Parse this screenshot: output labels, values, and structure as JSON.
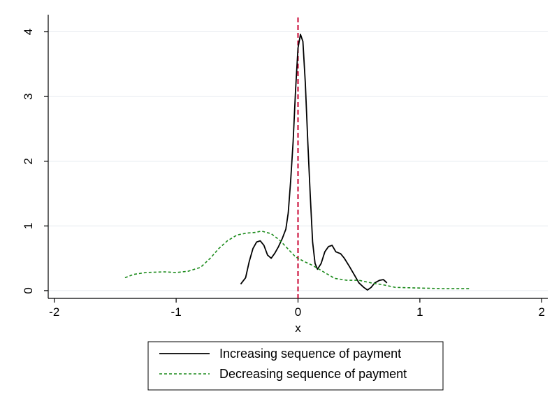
{
  "chart_data": {
    "type": "line",
    "title": "",
    "xlabel": "x",
    "ylabel": "",
    "xlim": [
      -2.05,
      2.05
    ],
    "ylim": [
      -0.12,
      4.2
    ],
    "xticks": [
      -2,
      -1,
      0,
      1,
      2
    ],
    "xtick_labels": [
      "-2",
      "-1",
      "0",
      "1",
      "2"
    ],
    "yticks": [
      0,
      1,
      2,
      3,
      4
    ],
    "ytick_labels": [
      "0",
      "1",
      "2",
      "3",
      "4"
    ],
    "grid": "horizontal",
    "reference_line": {
      "x": 0,
      "color": "#c8002f",
      "style": "dashed"
    },
    "legend": {
      "placement": "bottom"
    },
    "series": [
      {
        "name": "Increasing sequence of payment",
        "color": "#000000",
        "style": "solid",
        "points": [
          [
            -0.47,
            0.1
          ],
          [
            -0.43,
            0.2
          ],
          [
            -0.4,
            0.45
          ],
          [
            -0.37,
            0.65
          ],
          [
            -0.34,
            0.75
          ],
          [
            -0.31,
            0.77
          ],
          [
            -0.28,
            0.7
          ],
          [
            -0.25,
            0.55
          ],
          [
            -0.22,
            0.5
          ],
          [
            -0.19,
            0.58
          ],
          [
            -0.16,
            0.68
          ],
          [
            -0.13,
            0.8
          ],
          [
            -0.1,
            0.95
          ],
          [
            -0.08,
            1.2
          ],
          [
            -0.06,
            1.7
          ],
          [
            -0.04,
            2.3
          ],
          [
            -0.02,
            3.1
          ],
          [
            0.0,
            3.75
          ],
          [
            0.02,
            3.96
          ],
          [
            0.04,
            3.85
          ],
          [
            0.06,
            3.2
          ],
          [
            0.08,
            2.3
          ],
          [
            0.1,
            1.5
          ],
          [
            0.12,
            0.75
          ],
          [
            0.14,
            0.42
          ],
          [
            0.16,
            0.33
          ],
          [
            0.19,
            0.42
          ],
          [
            0.22,
            0.6
          ],
          [
            0.25,
            0.68
          ],
          [
            0.28,
            0.7
          ],
          [
            0.31,
            0.6
          ],
          [
            0.35,
            0.57
          ],
          [
            0.38,
            0.5
          ],
          [
            0.42,
            0.38
          ],
          [
            0.46,
            0.25
          ],
          [
            0.5,
            0.12
          ],
          [
            0.54,
            0.05
          ],
          [
            0.57,
            0.01
          ],
          [
            0.6,
            0.05
          ],
          [
            0.63,
            0.12
          ],
          [
            0.67,
            0.16
          ],
          [
            0.7,
            0.17
          ],
          [
            0.73,
            0.12
          ]
        ]
      },
      {
        "name": "Decreasing sequence of payment",
        "color": "#1a8a1a",
        "style": "dashed",
        "points": [
          [
            -1.42,
            0.2
          ],
          [
            -1.35,
            0.25
          ],
          [
            -1.25,
            0.28
          ],
          [
            -1.1,
            0.29
          ],
          [
            -1.0,
            0.28
          ],
          [
            -0.9,
            0.3
          ],
          [
            -0.8,
            0.36
          ],
          [
            -0.72,
            0.5
          ],
          [
            -0.65,
            0.65
          ],
          [
            -0.58,
            0.77
          ],
          [
            -0.5,
            0.86
          ],
          [
            -0.42,
            0.89
          ],
          [
            -0.35,
            0.9
          ],
          [
            -0.3,
            0.92
          ],
          [
            -0.22,
            0.88
          ],
          [
            -0.15,
            0.78
          ],
          [
            -0.08,
            0.64
          ],
          [
            -0.02,
            0.52
          ],
          [
            0.05,
            0.45
          ],
          [
            0.12,
            0.39
          ],
          [
            0.2,
            0.3
          ],
          [
            0.3,
            0.19
          ],
          [
            0.4,
            0.16
          ],
          [
            0.5,
            0.16
          ],
          [
            0.6,
            0.12
          ],
          [
            0.7,
            0.09
          ],
          [
            0.8,
            0.05
          ],
          [
            1.0,
            0.04
          ],
          [
            1.2,
            0.03
          ],
          [
            1.42,
            0.03
          ]
        ]
      }
    ]
  }
}
